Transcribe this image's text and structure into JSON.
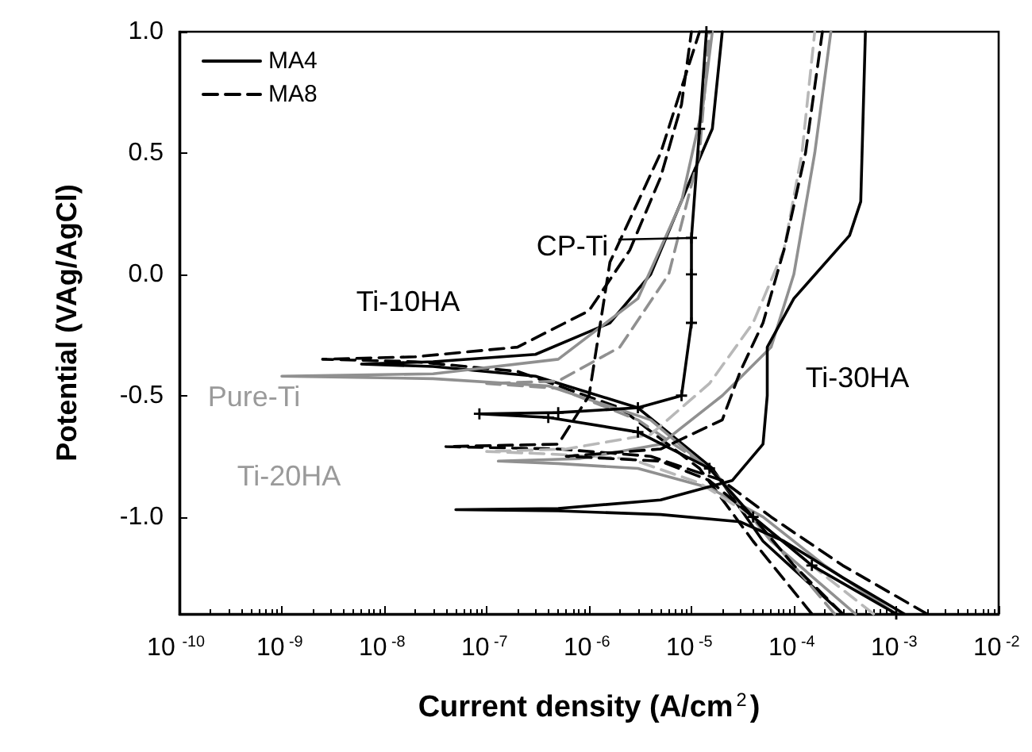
{
  "chart_data": {
    "type": "line",
    "xlabel": "Current density (A/cm$^{2}$)",
    "ylabel": "Potential (VAg/AgCl)",
    "log": "x",
    "xlim": [
      1e-10,
      0.01
    ],
    "ylim": [
      -1.4,
      1.0
    ],
    "xticks": [
      {
        "value": 1e-10,
        "label": "10$^{-10}$"
      },
      {
        "value": 1e-09,
        "label": "10$^{-9}$"
      },
      {
        "value": 1e-08,
        "label": "10$^{-8}$"
      },
      {
        "value": 1e-07,
        "label": "10$^{-7}$"
      },
      {
        "value": 1e-06,
        "label": "10$^{-6}$"
      },
      {
        "value": 1e-05,
        "label": "10$^{-5}$"
      },
      {
        "value": 0.0001,
        "label": "10$^{-4}$"
      },
      {
        "value": 0.001,
        "label": "10$^{-3}$"
      },
      {
        "value": 0.01,
        "label": "10$^{-2}$"
      }
    ],
    "yticks": [
      {
        "value": -1,
        "label": "-1.0"
      },
      -0.5,
      {
        "value": 0,
        "label": "0.0"
      },
      0.5,
      {
        "value": 1,
        "label": "1.0"
      }
    ],
    "grid": false,
    "legend": "top left",
    "marker": "none",
    "annotations": [
      {
        "text": "CP-Ti",
        "x": 1e-05,
        "y": 0.15
      },
      "Ti-10HA",
      "Pure-Ti",
      "Ti-20HA",
      "Ti-30HA"
    ],
    "series": [
      {
        "name": "MA4",
        "color": "#000000",
        "line_style": "solid",
        "x": [
          0.0003,
          5e-05,
          1.6e-05,
          3e-06,
          3e-07,
          3e-08,
          6e-09,
          3e-08,
          3e-07,
          1.6e-06,
          4e-06,
          1e-05,
          1.6e-05,
          2e-05
        ],
        "values": [
          -1.4,
          -1.1,
          -0.8,
          -0.55,
          -0.42,
          -0.38,
          -0.37,
          -0.36,
          -0.33,
          -0.2,
          0.0,
          0.4,
          0.6,
          1.0
        ]
      },
      {
        "name": "MA8",
        "color": "#000000",
        "line_style": "dashed",
        "x": [
          0.00015,
          4e-05,
          1.2e-05,
          2e-06,
          2e-07,
          2e-08,
          2.5e-09,
          2e-08,
          2e-07,
          1e-06,
          2.5e-06,
          5e-06,
          8e-06,
          1e-05
        ],
        "values": [
          -1.4,
          -1.1,
          -0.8,
          -0.55,
          -0.4,
          -0.36,
          -0.35,
          -0.34,
          -0.3,
          -0.15,
          0.1,
          0.4,
          0.7,
          1.0
        ]
      },
      {
        "color": "#909090",
        "line_style": "solid",
        "x": [
          0.0004,
          6e-05,
          2e-05,
          4e-06,
          4e-07,
          3e-08,
          1e-09,
          3e-08,
          5e-07,
          3e-06,
          8e-06,
          1.3e-05,
          1.6e-05
        ],
        "values": [
          -1.4,
          -1.1,
          -0.85,
          -0.6,
          -0.46,
          -0.43,
          -0.42,
          -0.41,
          -0.35,
          -0.1,
          0.3,
          0.7,
          1.0
        ]
      },
      {
        "color": "#909090",
        "line_style": "dashed",
        "x": [
          0.00025,
          5e-05,
          1.5e-05,
          3e-06,
          5e-07,
          1e-07,
          5e-07,
          2e-06,
          6e-06,
          1.2e-05,
          1.5e-05
        ],
        "values": [
          -1.4,
          -1.05,
          -0.8,
          -0.6,
          -0.47,
          -0.45,
          -0.44,
          -0.3,
          0.0,
          0.5,
          1.0
        ]
      },
      {
        "color": "#000000",
        "line_style": "solid",
        "marker": "cross",
        "x": [
          0.001,
          0.00015,
          4e-05,
          1.5e-05,
          3e-06,
          4e-07,
          8.5e-08,
          5e-07,
          3e-06,
          8e-06,
          1e-05,
          1e-05,
          1e-05,
          1.2e-05,
          1.4e-05
        ],
        "values": [
          -1.4,
          -1.2,
          -1.0,
          -0.8,
          -0.65,
          -0.59,
          -0.575,
          -0.57,
          -0.55,
          -0.5,
          -0.2,
          0.0,
          0.15,
          0.6,
          1.0
        ]
      },
      {
        "color": "#000000",
        "line_style": "dashed",
        "x": [
          0.002,
          0.0003,
          6e-05,
          2e-05,
          4e-06,
          5e-07,
          4e-08,
          5e-07,
          1e-06,
          1.6e-06,
          5e-06,
          1.2e-05
        ],
        "values": [
          -1.4,
          -1.2,
          -1.0,
          -0.85,
          -0.75,
          -0.72,
          -0.71,
          -0.7,
          -0.5,
          0.05,
          0.5,
          1.0
        ]
      },
      {
        "color": "#909090",
        "line_style": "solid",
        "x": [
          0.001,
          0.0002,
          5e-05,
          1.5e-05,
          3e-06,
          5e-07,
          1.3e-07,
          8e-07,
          5e-06,
          2e-05,
          6e-05,
          0.0001,
          0.00016,
          0.00023
        ],
        "values": [
          -1.4,
          -1.2,
          -1.0,
          -0.88,
          -0.8,
          -0.78,
          -0.77,
          -0.76,
          -0.7,
          -0.5,
          -0.3,
          0.0,
          0.5,
          1.0
        ]
      },
      {
        "color": "#b8b8b8",
        "line_style": "dashed",
        "x": [
          0.0006,
          0.00015,
          4e-05,
          1.2e-05,
          2.5e-06,
          4e-07,
          1e-07,
          6e-07,
          4e-06,
          1.5e-05,
          4e-05,
          8e-05,
          0.00012,
          0.00016
        ],
        "values": [
          -1.4,
          -1.2,
          -1.0,
          -0.86,
          -0.76,
          -0.74,
          -0.73,
          -0.72,
          -0.66,
          -0.45,
          -0.2,
          0.1,
          0.5,
          1.0
        ]
      },
      {
        "color": "#000000",
        "line_style": "solid",
        "x": [
          0.0012,
          0.0003,
          8e-05,
          3e-05,
          5e-06,
          5e-07,
          5e-08,
          5e-07,
          5e-06,
          2.5e-05,
          5e-05,
          5.5e-05,
          5.5e-05,
          0.0001,
          0.00035,
          0.00045,
          0.0005
        ],
        "values": [
          -1.4,
          -1.25,
          -1.1,
          -1.02,
          -0.99,
          -0.975,
          -0.97,
          -0.965,
          -0.93,
          -0.85,
          -0.7,
          -0.5,
          -0.3,
          -0.1,
          0.16,
          0.3,
          1.0
        ]
      },
      {
        "color": "#000000",
        "line_style": "dashed",
        "x": [
          0.0003,
          0.0001,
          4e-05,
          1.5e-05,
          5e-06,
          6e-07,
          5e-06,
          2e-05,
          3e-05,
          5e-05,
          8e-05,
          0.00013,
          0.00019
        ],
        "values": [
          -1.4,
          -1.2,
          -1.0,
          -0.85,
          -0.77,
          -0.75,
          -0.72,
          -0.6,
          -0.4,
          -0.2,
          0.1,
          0.5,
          1.0
        ]
      }
    ]
  }
}
